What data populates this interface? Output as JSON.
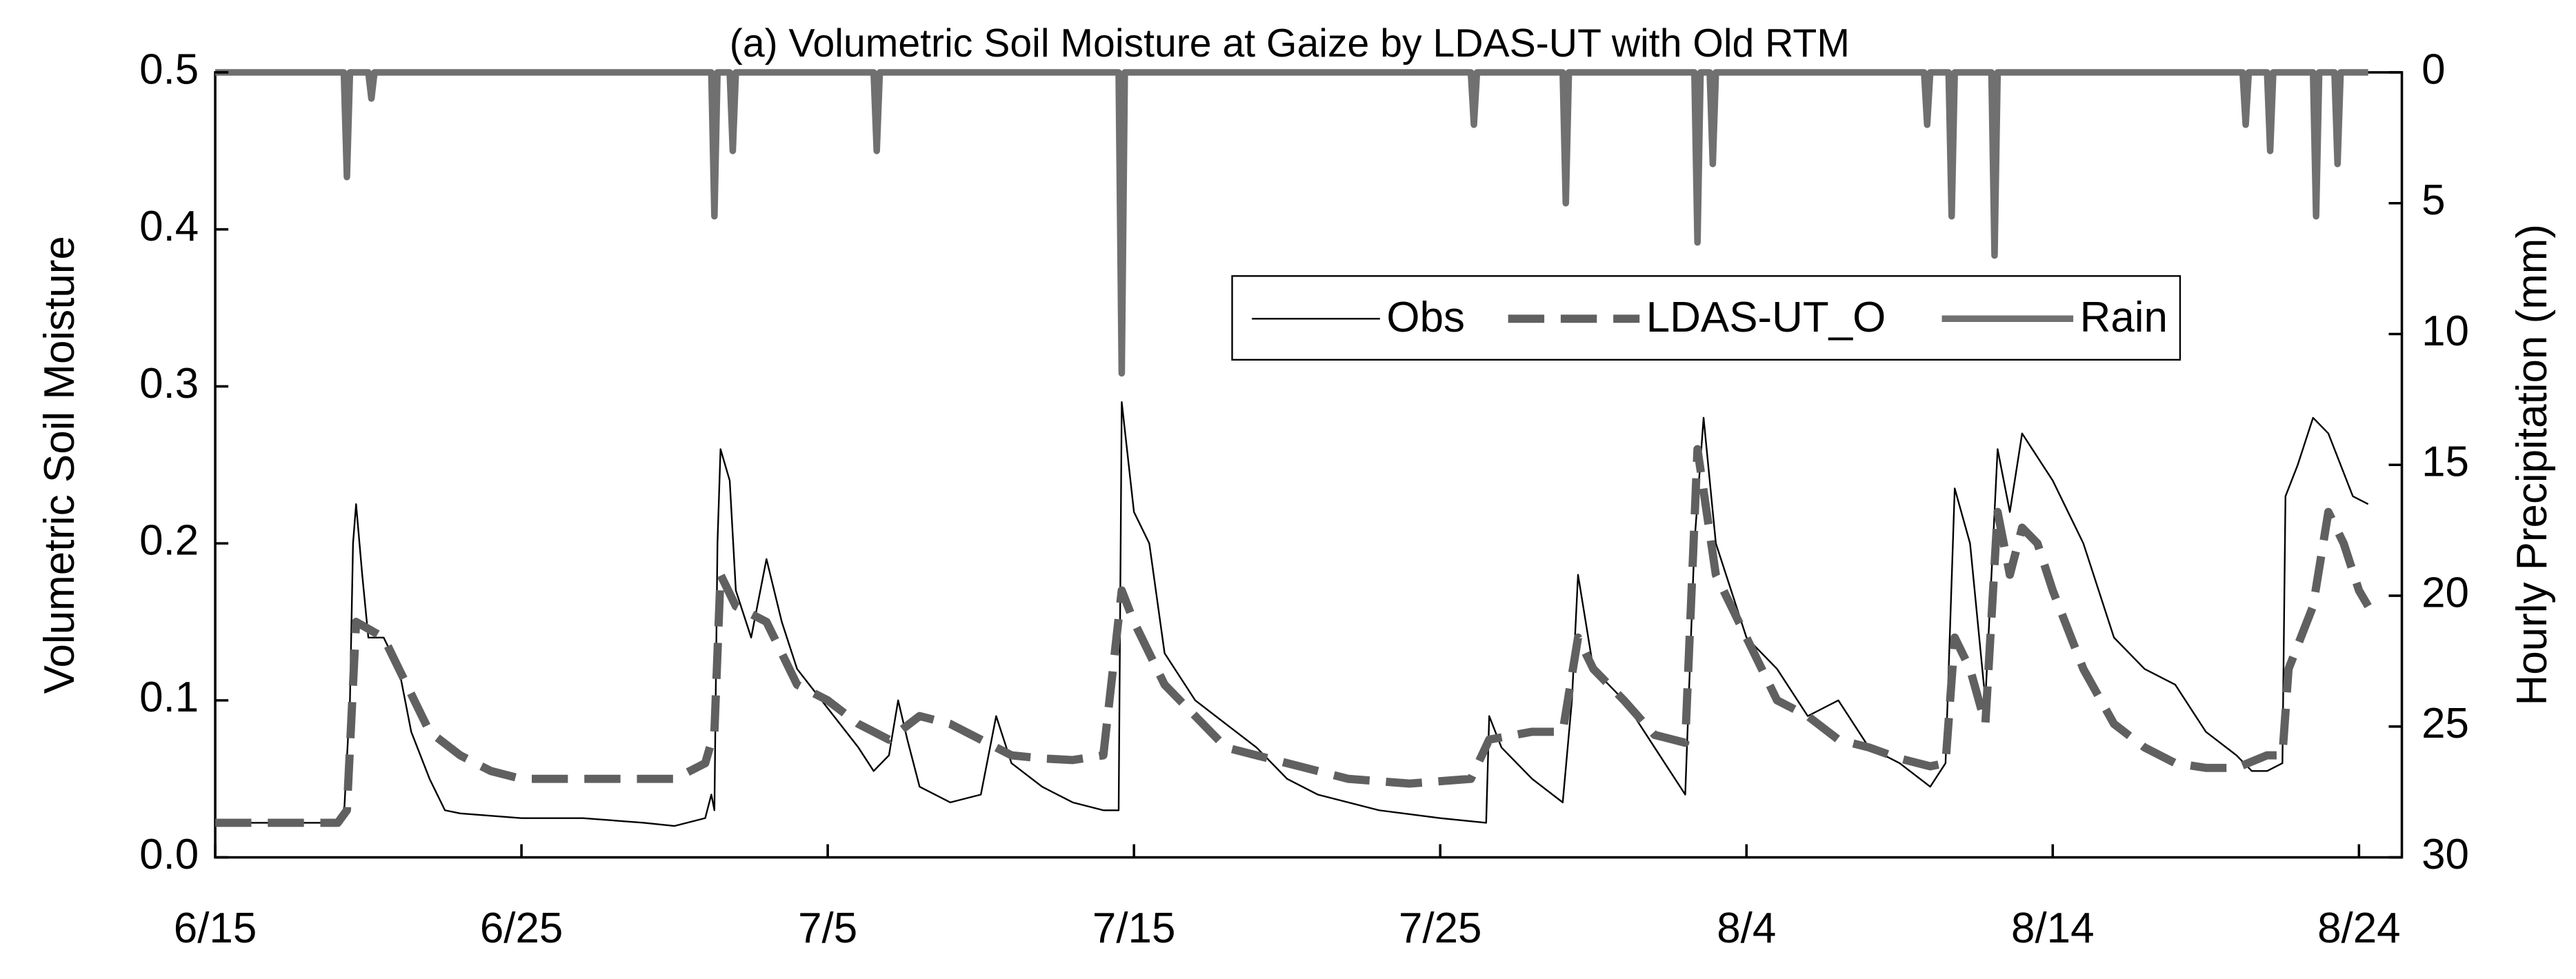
{
  "chart_data": {
    "type": "line",
    "title": "(a) Volumetric Soil Moisture at Gaize by LDAS-UT with Old RTM",
    "y_label": "Volumetric Soil Moisture",
    "y2_label": "Hourly Precipitation (mm)",
    "xlim": [
      0,
      71.4
    ],
    "xticks": [
      {
        "value": 0,
        "label": "6/15"
      },
      {
        "value": 10,
        "label": "6/25"
      },
      {
        "value": 20,
        "label": "7/5"
      },
      {
        "value": 30,
        "label": "7/15"
      },
      {
        "value": 40,
        "label": "7/25"
      },
      {
        "value": 50,
        "label": "8/4"
      },
      {
        "value": 60,
        "label": "8/14"
      },
      {
        "value": 70,
        "label": "8/24"
      }
    ],
    "ylim": [
      0,
      0.5
    ],
    "yticks": [
      {
        "value": 0,
        "label": "0.0"
      },
      0.1,
      0.2,
      0.3,
      0.4,
      0.5
    ],
    "y2lim": [
      30,
      0
    ],
    "y2ticks": [
      0,
      5,
      10,
      15,
      20,
      25,
      30
    ],
    "legend": "upper-right",
    "series": [
      {
        "name": "Obs",
        "color": "#000000",
        "style": "thin",
        "x": [
          0,
          4,
          4.2,
          4.4,
          4.5,
          4.6,
          4.8,
          5,
          5.5,
          6,
          6.4,
          7,
          7.5,
          8,
          10,
          12,
          14,
          15,
          16,
          16.2,
          16.3,
          16.4,
          16.5,
          16.8,
          17,
          17.5,
          18,
          18.5,
          19,
          20,
          21,
          21.5,
          22,
          22.3,
          22.6,
          23,
          24,
          25,
          25.5,
          26,
          27,
          28,
          29,
          29.5,
          29.6,
          30,
          30.5,
          31,
          32,
          33,
          34,
          35,
          36,
          38,
          40,
          41.5,
          41.6,
          42,
          43,
          44,
          44.3,
          44.5,
          45,
          46,
          47,
          48,
          48.3,
          48.6,
          49,
          50,
          51,
          52,
          53,
          54,
          55,
          56,
          56.5,
          56.8,
          57.3,
          57.8,
          58.2,
          58.6,
          59,
          60,
          61,
          62,
          63,
          64,
          65,
          66,
          66.5,
          67,
          67.5,
          67.6,
          68,
          68.5,
          69,
          69.8,
          70.3
        ],
        "values": [
          0.022,
          0.022,
          0.025,
          0.1,
          0.2,
          0.225,
          0.18,
          0.14,
          0.14,
          0.12,
          0.08,
          0.05,
          0.03,
          0.028,
          0.025,
          0.025,
          0.022,
          0.02,
          0.025,
          0.04,
          0.03,
          0.2,
          0.26,
          0.24,
          0.17,
          0.14,
          0.19,
          0.15,
          0.12,
          0.095,
          0.07,
          0.055,
          0.065,
          0.1,
          0.075,
          0.045,
          0.035,
          0.04,
          0.09,
          0.06,
          0.045,
          0.035,
          0.03,
          0.03,
          0.29,
          0.22,
          0.2,
          0.13,
          0.1,
          0.085,
          0.07,
          0.05,
          0.04,
          0.03,
          0.025,
          0.022,
          0.09,
          0.07,
          0.05,
          0.035,
          0.1,
          0.18,
          0.12,
          0.1,
          0.07,
          0.04,
          0.2,
          0.28,
          0.2,
          0.14,
          0.12,
          0.09,
          0.1,
          0.07,
          0.06,
          0.045,
          0.06,
          0.235,
          0.2,
          0.1,
          0.26,
          0.22,
          0.27,
          0.24,
          0.2,
          0.14,
          0.12,
          0.11,
          0.08,
          0.065,
          0.055,
          0.055,
          0.06,
          0.23,
          0.25,
          0.28,
          0.27,
          0.23,
          0.225
        ]
      },
      {
        "name": "LDAS-UT_O",
        "color": "#606060",
        "style": "dashed",
        "x": [
          0,
          4,
          4.3,
          4.6,
          5.5,
          6,
          6.5,
          7,
          8,
          9,
          10,
          11,
          13,
          15,
          16,
          16.3,
          16.5,
          17,
          18,
          18.5,
          19,
          20,
          21,
          22,
          23,
          24,
          25,
          26,
          27,
          28,
          29,
          29.6,
          30,
          31,
          32,
          33,
          34,
          35,
          37,
          39,
          41,
          41.6,
          43,
          44,
          44.5,
          45,
          46,
          47,
          48,
          48.4,
          49,
          50,
          51,
          52,
          53,
          54,
          55,
          56,
          56.5,
          56.8,
          57.3,
          57.8,
          58.2,
          58.6,
          59,
          59.5,
          60,
          61,
          62,
          63,
          64,
          65,
          66,
          67,
          67.5,
          67.7,
          68.5,
          69,
          69.5,
          70,
          70.3
        ],
        "values": [
          0.022,
          0.022,
          0.03,
          0.15,
          0.14,
          0.12,
          0.1,
          0.08,
          0.065,
          0.055,
          0.05,
          0.05,
          0.05,
          0.05,
          0.06,
          0.08,
          0.18,
          0.16,
          0.15,
          0.13,
          0.11,
          0.1,
          0.085,
          0.075,
          0.09,
          0.085,
          0.075,
          0.065,
          0.063,
          0.062,
          0.065,
          0.17,
          0.15,
          0.11,
          0.09,
          0.07,
          0.065,
          0.06,
          0.05,
          0.047,
          0.05,
          0.075,
          0.08,
          0.08,
          0.14,
          0.12,
          0.1,
          0.078,
          0.073,
          0.26,
          0.18,
          0.14,
          0.1,
          0.09,
          0.075,
          0.07,
          0.063,
          0.058,
          0.06,
          0.14,
          0.12,
          0.085,
          0.22,
          0.18,
          0.21,
          0.2,
          0.17,
          0.12,
          0.085,
          0.07,
          0.06,
          0.057,
          0.057,
          0.065,
          0.065,
          0.12,
          0.16,
          0.22,
          0.2,
          0.17,
          0.16
        ]
      },
      {
        "name": "Rain",
        "color": "#707070",
        "style": "thick",
        "axis": "y2",
        "x": [
          0,
          4.2,
          4.3,
          4.4,
          5,
          5.1,
          5.2,
          16.2,
          16.3,
          16.4,
          16.8,
          16.9,
          17,
          21.5,
          21.6,
          21.7,
          29.5,
          29.6,
          29.7,
          41,
          41.1,
          41.2,
          44,
          44.1,
          44.2,
          48.3,
          48.4,
          48.5,
          48.8,
          48.9,
          49,
          55.8,
          55.9,
          56,
          56.6,
          56.7,
          56.8,
          58,
          58.1,
          58.2,
          66.2,
          66.3,
          66.4,
          67,
          67.1,
          67.2,
          68.5,
          68.6,
          68.7,
          69.2,
          69.3,
          69.4,
          70.3
        ],
        "values": [
          0,
          0,
          4,
          0,
          0,
          1,
          0,
          0,
          5.5,
          0,
          0,
          3,
          0,
          0,
          3,
          0,
          0,
          11.5,
          0,
          0,
          2,
          0,
          0,
          5,
          0,
          0,
          6.5,
          0,
          0,
          3.5,
          0,
          0,
          2,
          0,
          0,
          5.5,
          0,
          0,
          7,
          0,
          0,
          2,
          0,
          0,
          3,
          0,
          0,
          5.5,
          0,
          0,
          3.5,
          0,
          0
        ]
      }
    ]
  }
}
